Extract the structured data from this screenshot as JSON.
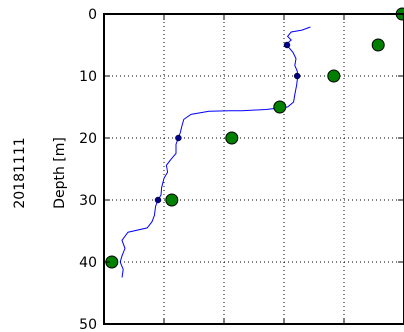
{
  "chart_data": {
    "type": "line",
    "side_label": "20181111",
    "ylabel": "Depth [m]",
    "xlabel": "",
    "ylim": [
      50,
      0
    ],
    "y_inverted": true,
    "yticks": [
      0,
      10,
      20,
      30,
      40,
      50
    ],
    "xlim": [
      0,
      5
    ],
    "grid": true,
    "colors": {
      "profile": "#0000ff",
      "small_markers": "#00008b",
      "large_markers": "#008000"
    },
    "series": [
      {
        "kind": "line",
        "points": [
          [
            3.44,
            2.1
          ],
          [
            3.3,
            2.6
          ],
          [
            3.12,
            2.9
          ],
          [
            3.06,
            3.6
          ],
          [
            3.12,
            4.2
          ],
          [
            3.05,
            4.8
          ],
          [
            3.08,
            5.4
          ],
          [
            3.15,
            6.2
          ],
          [
            3.2,
            7.2
          ],
          [
            3.18,
            8.3
          ],
          [
            3.22,
            9.2
          ],
          [
            3.23,
            10.0
          ],
          [
            3.21,
            11.5
          ],
          [
            3.18,
            13.0
          ],
          [
            3.16,
            14.2
          ],
          [
            3.06,
            15.0
          ],
          [
            2.7,
            15.4
          ],
          [
            2.3,
            15.6
          ],
          [
            2.1,
            15.6
          ],
          [
            1.75,
            15.7
          ],
          [
            1.45,
            16.2
          ],
          [
            1.33,
            17.0
          ],
          [
            1.3,
            18.0
          ],
          [
            1.27,
            19.2
          ],
          [
            1.24,
            20.0
          ],
          [
            1.2,
            21.0
          ],
          [
            1.2,
            22.5
          ],
          [
            1.12,
            23.4
          ],
          [
            1.04,
            24.4
          ],
          [
            1.06,
            25.5
          ],
          [
            1.0,
            26.5
          ],
          [
            0.96,
            28.0
          ],
          [
            0.95,
            29.2
          ],
          [
            0.9,
            30.0
          ],
          [
            0.86,
            31.0
          ],
          [
            0.84,
            32.5
          ],
          [
            0.8,
            33.5
          ],
          [
            0.72,
            34.5
          ],
          [
            0.4,
            35.2
          ],
          [
            0.3,
            36.5
          ],
          [
            0.35,
            37.8
          ],
          [
            0.3,
            39.0
          ],
          [
            0.27,
            40.0
          ],
          [
            0.32,
            41.2
          ],
          [
            0.3,
            42.5
          ]
        ]
      },
      {
        "kind": "small_markers",
        "points": [
          [
            3.05,
            5.0
          ],
          [
            3.22,
            10.0
          ],
          [
            1.24,
            20.0
          ],
          [
            0.9,
            30.0
          ]
        ]
      },
      {
        "kind": "large_markers",
        "points": [
          [
            4.97,
            0.0
          ],
          [
            4.57,
            5.0
          ],
          [
            3.83,
            10.0
          ],
          [
            2.93,
            15.0
          ],
          [
            2.13,
            20.0
          ],
          [
            1.13,
            30.0
          ],
          [
            0.13,
            40.0
          ]
        ]
      }
    ]
  }
}
